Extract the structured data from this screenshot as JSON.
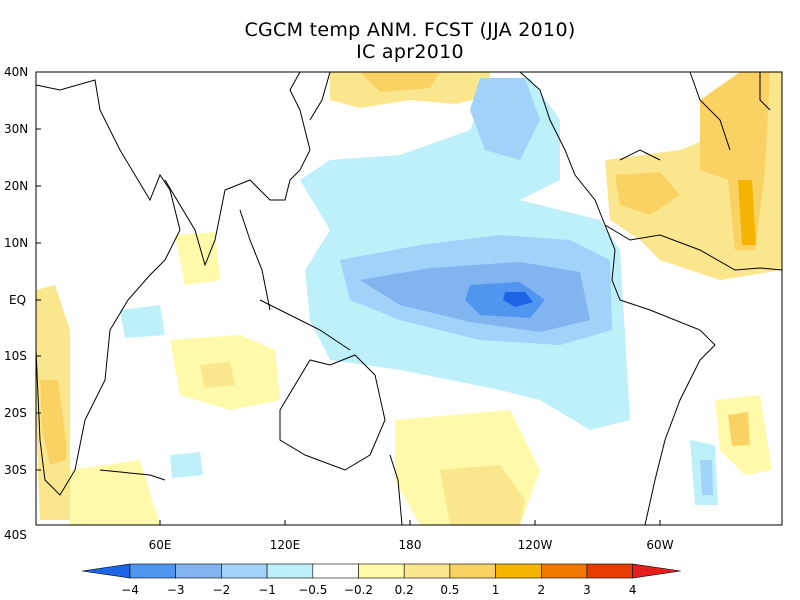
{
  "title": {
    "line1": "CGCM temp ANM. FCST  (JJA 2010)",
    "line2": "IC apr2010"
  },
  "map": {
    "variable": "temperature anomaly forecast",
    "lat_labels": [
      "40N",
      "30N",
      "20N",
      "10N",
      "EQ",
      "10S",
      "20S",
      "30S",
      "40S"
    ],
    "lon_labels": [
      "60E",
      "120E",
      "180",
      "120W",
      "60W"
    ]
  },
  "colorbar": {
    "levels": [
      "−4",
      "−3",
      "−2",
      "−1",
      "−0.5",
      "−0.2",
      "0.2",
      "0.5",
      "1",
      "2",
      "3",
      "4"
    ],
    "colors": [
      "#1e64e6",
      "#5096f0",
      "#82b4f0",
      "#a0d2fa",
      "#bef0fa",
      "#ffffff",
      "#fffaaa",
      "#fae68c",
      "#fad264",
      "#f5b400",
      "#f07800",
      "#e63c00",
      "#e61e1e"
    ]
  }
}
